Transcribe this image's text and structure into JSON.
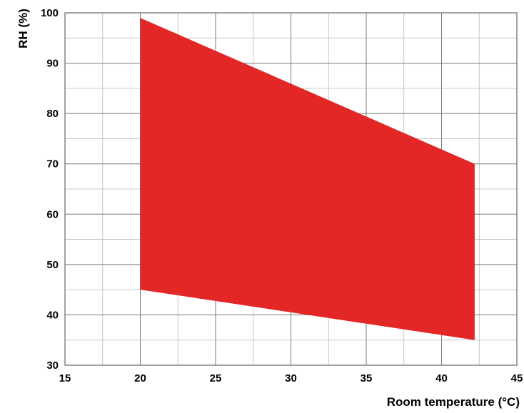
{
  "chart_data": {
    "type": "area",
    "title": "",
    "xlabel": "Room temperature (°C)",
    "ylabel": "RH (%)",
    "xlim": [
      15,
      45
    ],
    "ylim": [
      30,
      100
    ],
    "x_ticks": [
      15,
      20,
      25,
      30,
      35,
      40,
      45
    ],
    "y_ticks": [
      30,
      40,
      50,
      60,
      70,
      80,
      90,
      100
    ],
    "grid": true,
    "x_minor_step": 2.5,
    "y_minor_step": 5,
    "region": {
      "color": "#e32626",
      "upper": [
        {
          "x": 20,
          "y": 99
        },
        {
          "x": 42.2,
          "y": 70
        }
      ],
      "lower": [
        {
          "x": 20,
          "y": 45
        },
        {
          "x": 42.2,
          "y": 35
        }
      ]
    }
  }
}
